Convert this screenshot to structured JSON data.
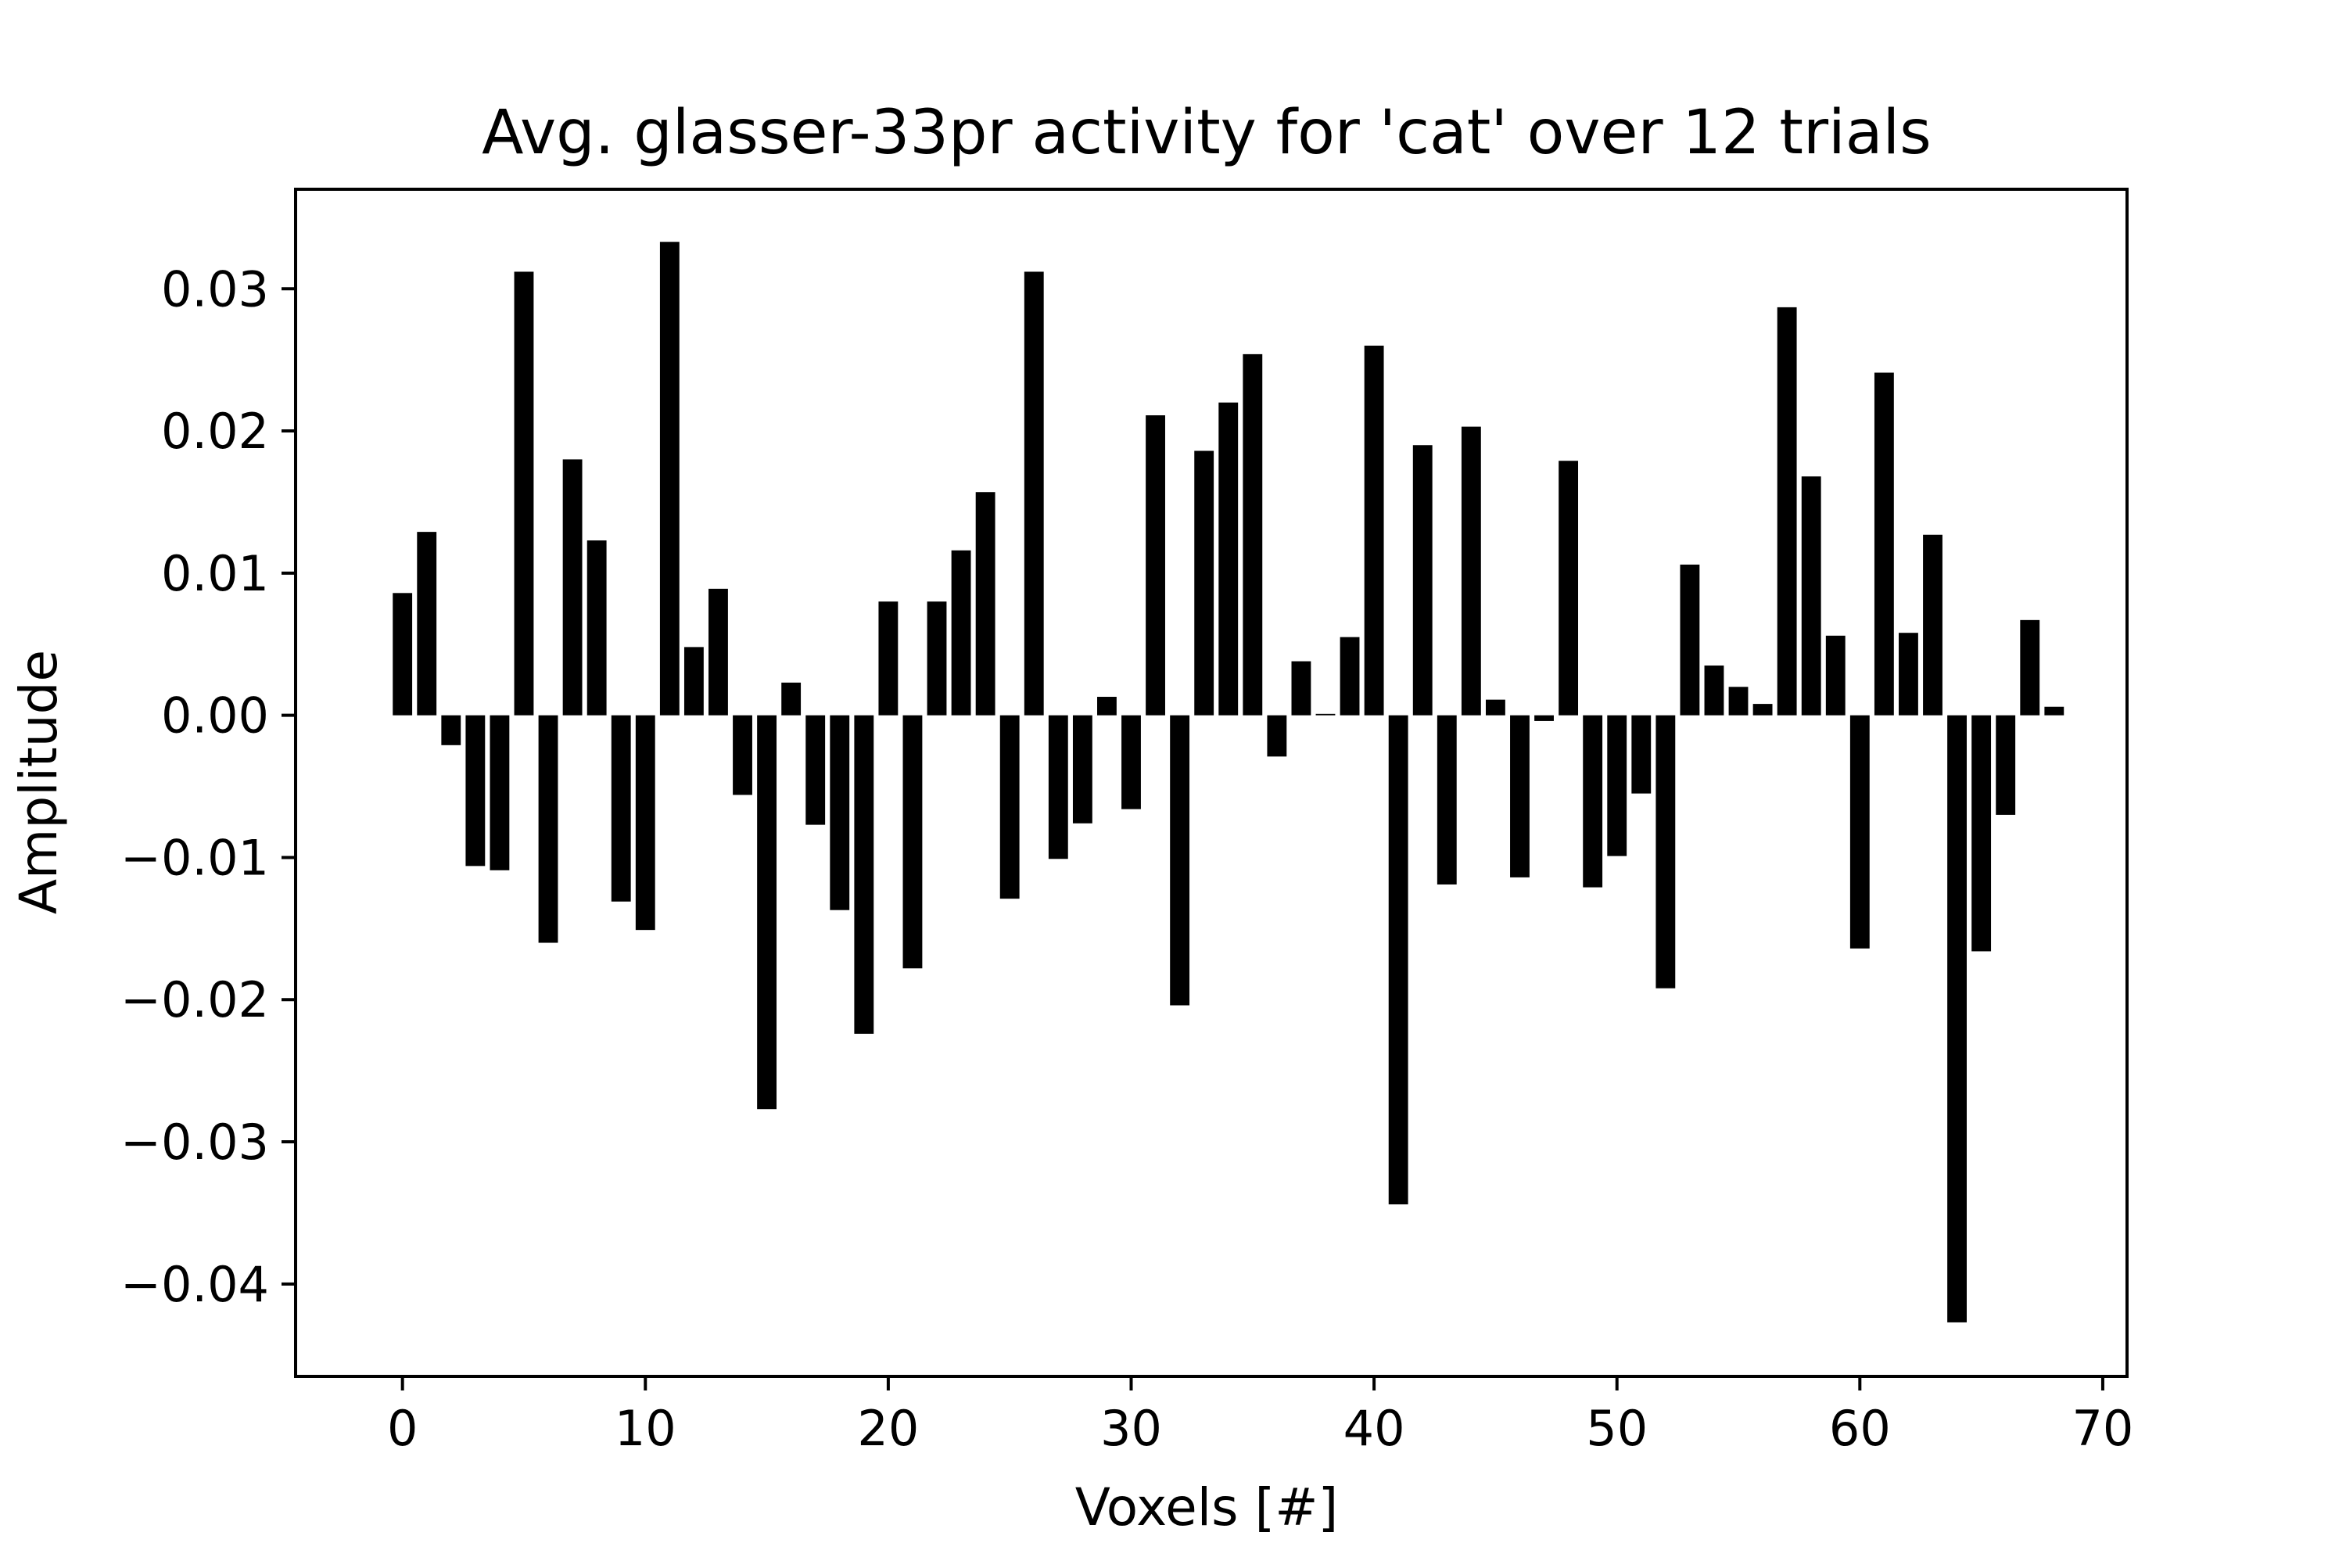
{
  "chart_data": {
    "type": "bar",
    "title": "Avg. glasser-33pr activity for 'cat' over 12 trials",
    "xlabel": "Voxels [#]",
    "ylabel": "Amplitude",
    "xlim": [
      -4.4,
      71.0
    ],
    "ylim": [
      -0.0465,
      0.037
    ],
    "xticks": [
      0,
      10,
      20,
      30,
      40,
      50,
      60,
      70
    ],
    "xtick_labels": [
      "0",
      "10",
      "20",
      "30",
      "40",
      "50",
      "60",
      "70"
    ],
    "yticks": [
      0.03,
      0.02,
      0.01,
      0.0,
      -0.01,
      -0.02,
      -0.03,
      -0.04
    ],
    "ytick_labels": [
      "0.03",
      "0.02",
      "0.01",
      "0.00",
      "−0.01",
      "−0.02",
      "−0.03",
      "−0.04"
    ],
    "grid": false,
    "bar_color": "#000000",
    "x": [
      0,
      1,
      2,
      3,
      4,
      5,
      6,
      7,
      8,
      9,
      10,
      11,
      12,
      13,
      14,
      15,
      16,
      17,
      18,
      19,
      20,
      21,
      22,
      23,
      24,
      25,
      26,
      27,
      28,
      29,
      30,
      31,
      32,
      33,
      34,
      35,
      36,
      37,
      38,
      39,
      40,
      41,
      42,
      43,
      44,
      45,
      46,
      47,
      48,
      49,
      50,
      51,
      52,
      53,
      54,
      55,
      56,
      57,
      58,
      59,
      60,
      61,
      62,
      63,
      64,
      65,
      66,
      67,
      68
    ],
    "values": [
      0.0086,
      0.0129,
      -0.0021,
      -0.0106,
      -0.0109,
      0.0312,
      -0.016,
      0.018,
      0.0123,
      -0.0131,
      -0.0151,
      0.0333,
      0.0048,
      0.0089,
      -0.0056,
      -0.0277,
      0.0023,
      -0.0077,
      -0.0137,
      -0.0224,
      0.008,
      -0.0178,
      0.008,
      0.0116,
      0.0157,
      -0.0129,
      0.0312,
      -0.0101,
      -0.0076,
      0.0013,
      -0.0066,
      0.0211,
      -0.0204,
      0.0186,
      0.022,
      0.0254,
      -0.0029,
      0.0038,
      0.0001,
      0.0055,
      0.026,
      -0.0344,
      0.019,
      -0.0119,
      0.0203,
      0.0011,
      -0.0114,
      -0.0004,
      0.0179,
      -0.0121,
      -0.0099,
      -0.0055,
      -0.0192,
      0.0106,
      0.0035,
      0.002,
      0.0008,
      0.0287,
      0.0168,
      0.0056,
      -0.0164,
      0.0241,
      0.0058,
      0.0127,
      -0.0427,
      -0.0166,
      -0.007,
      0.0067,
      0.0006
    ]
  }
}
